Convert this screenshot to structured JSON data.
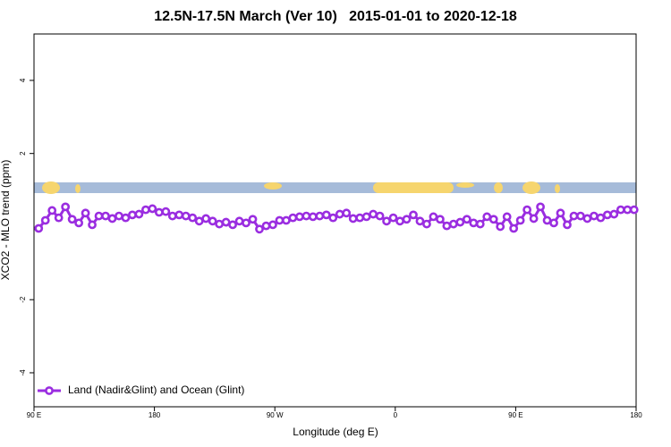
{
  "chart_data": {
    "type": "line",
    "title": "12.5N-17.5N March (Ver 10)   2015-01-01 to 2020-12-18",
    "x_label": "Longitude (deg E)",
    "y_label": "XCO2 - MLO trend (ppm)",
    "xlim": [
      90,
      540
    ],
    "ylim": [
      -4.93,
      5.27
    ],
    "xticks": [
      {
        "value": 90,
        "label": "90 E"
      },
      180,
      {
        "value": 270,
        "label": "90 W"
      },
      {
        "value": 360,
        "label": "0"
      },
      {
        "value": 450,
        "label": "90 E"
      },
      {
        "value": 540,
        "label": "180"
      }
    ],
    "yticks": [
      -4,
      -2,
      2,
      4
    ],
    "legend": "bottom-left",
    "x": [
      93.5,
      98.5,
      103.5,
      108.5,
      113.5,
      118.5,
      123.5,
      128.5,
      133.5,
      138.5,
      143.5,
      148.5,
      153.5,
      158.5,
      163.5,
      168.5,
      173.5,
      178.5,
      183.5,
      188.5,
      193.5,
      198.5,
      203.5,
      208.5,
      213.5,
      218.5,
      223.5,
      228.5,
      233.5,
      238.5,
      243.5,
      248.5,
      253.5,
      258.5,
      263.5,
      268.5,
      273.5,
      278.5,
      283.5,
      288.5,
      293.5,
      298.5,
      303.5,
      308.5,
      313.5,
      318.5,
      323.5,
      328.5,
      333.5,
      338.5,
      343.5,
      348.5,
      353.5,
      358.5,
      363.5,
      368.5,
      373.5,
      378.5,
      383.5,
      388.5,
      393.5,
      398.5,
      403.5,
      408.5,
      413.5,
      418.5,
      423.5,
      428.5,
      433.5,
      438.5,
      443.5,
      448.5,
      453.5,
      458.5,
      463.5,
      468.5,
      473.5,
      478.5,
      483.5,
      488.5,
      493.5,
      498.5,
      503.5,
      508.5,
      513.5,
      518.5,
      523.5,
      528.5,
      533.5,
      538.5
    ],
    "series": [
      {
        "name": "Land (Nadir&Glint) and Ocean (Glint)",
        "color": "#9a2de0",
        "values": [
          -0.05,
          0.17,
          0.44,
          0.24,
          0.54,
          0.2,
          0.1,
          0.37,
          0.05,
          0.29,
          0.29,
          0.22,
          0.29,
          0.24,
          0.32,
          0.34,
          0.46,
          0.49,
          0.39,
          0.41,
          0.29,
          0.32,
          0.29,
          0.24,
          0.15,
          0.22,
          0.15,
          0.07,
          0.12,
          0.05,
          0.15,
          0.1,
          0.2,
          -0.07,
          0.02,
          0.05,
          0.17,
          0.17,
          0.24,
          0.27,
          0.29,
          0.27,
          0.29,
          0.32,
          0.24,
          0.34,
          0.37,
          0.22,
          0.24,
          0.27,
          0.34,
          0.29,
          0.15,
          0.24,
          0.15,
          0.2,
          0.32,
          0.15,
          0.07,
          0.27,
          0.2,
          0.02,
          0.07,
          0.12,
          0.2,
          0.1,
          0.07,
          0.27,
          0.2,
          0,
          0.27,
          -0.05,
          0.17,
          0.46,
          0.22,
          0.54,
          0.17,
          0.1,
          0.37,
          0.05,
          0.29,
          0.29,
          0.22,
          0.29,
          0.24,
          0.32,
          0.34,
          0.46,
          0.46,
          0.46
        ]
      }
    ]
  }
}
